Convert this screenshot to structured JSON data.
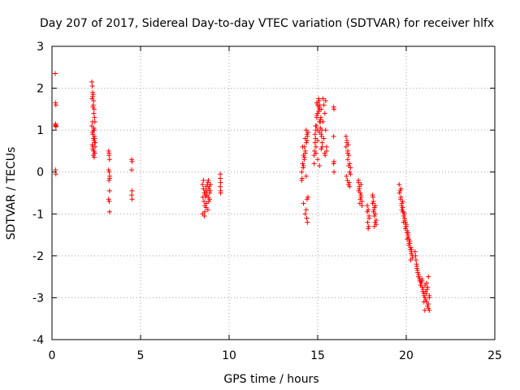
{
  "chart_data": {
    "type": "scatter",
    "title": "Day 207 of 2017, Sidereal Day-to-day VTEC variation (SDTVAR) for receiver hlfx",
    "xlabel": "GPS time / hours",
    "ylabel": "SDTVAR / TECUs",
    "xlim": [
      0,
      25
    ],
    "ylim": [
      -4,
      3
    ],
    "x_ticks": [
      0,
      5,
      10,
      15,
      20,
      25
    ],
    "y_ticks": [
      -4,
      -3,
      -2,
      -1,
      0,
      1,
      2,
      3
    ],
    "x_tick_labels": [
      "0",
      "5",
      "10",
      "15",
      "20",
      "25"
    ],
    "y_tick_labels": [
      "-4",
      "-3",
      "-2",
      "-1",
      "0",
      "1",
      "2",
      "3"
    ],
    "grid": true,
    "marker": "+",
    "color": "#ff0000",
    "series": [
      {
        "name": "SDTVAR",
        "x": [
          0.18,
          0.2,
          0.22,
          0.2,
          0.22,
          0.2,
          0.22,
          0.2,
          0.22,
          2.25,
          2.28,
          2.3,
          2.32,
          2.35,
          2.38,
          2.4,
          2.42,
          2.3,
          2.33,
          2.36,
          2.39,
          2.25,
          2.28,
          2.31,
          2.34,
          2.37,
          2.4,
          2.43,
          2.3,
          2.35,
          2.4,
          2.27,
          2.32,
          2.37,
          2.42,
          2.29,
          2.34,
          2.39,
          2.44,
          2.33,
          2.38,
          2.26,
          2.31,
          2.36,
          2.41,
          3.2,
          3.22,
          3.25,
          3.2,
          3.23,
          3.26,
          3.22,
          3.25,
          3.2,
          3.23,
          3.25,
          3.22,
          3.25,
          4.5,
          4.52,
          4.5,
          4.52,
          4.5,
          4.52,
          8.5,
          8.55,
          8.6,
          8.65,
          8.7,
          8.75,
          8.8,
          8.85,
          8.9,
          8.95,
          8.52,
          8.58,
          8.63,
          8.68,
          8.73,
          8.78,
          8.83,
          8.88,
          8.93,
          8.5,
          8.6,
          8.7,
          8.8,
          8.9,
          8.55,
          8.65,
          8.75,
          8.85,
          8.62,
          8.72,
          8.82,
          9.5,
          9.52,
          9.5,
          9.52,
          9.5,
          9.52,
          14.1,
          14.15,
          14.2,
          14.25,
          14.3,
          14.35,
          14.4,
          14.45,
          14.12,
          14.18,
          14.24,
          14.3,
          14.36,
          14.42,
          14.1,
          14.2,
          14.3,
          14.4,
          14.15,
          14.25,
          14.35,
          14.45,
          14.2,
          14.3,
          14.38,
          14.42,
          14.35,
          14.4,
          14.8,
          14.85,
          14.9,
          14.95,
          15.0,
          15.05,
          15.1,
          15.15,
          15.2,
          15.25,
          14.82,
          14.88,
          14.94,
          15.0,
          15.06,
          15.12,
          15.18,
          15.24,
          14.8,
          14.9,
          15.0,
          15.1,
          15.2,
          14.85,
          14.95,
          15.05,
          15.15,
          15.25,
          14.9,
          15.0,
          15.1,
          15.2,
          14.95,
          15.05,
          15.15,
          15.0,
          15.1,
          14.88,
          15.08,
          15.22,
          15.3,
          15.35,
          15.4,
          15.45,
          15.5,
          15.35,
          15.4,
          15.45,
          15.3,
          15.5,
          15.42,
          15.9,
          15.92,
          15.9,
          15.92,
          15.9,
          15.92,
          16.6,
          16.65,
          16.7,
          16.75,
          16.8,
          16.85,
          16.62,
          16.68,
          16.74,
          16.8,
          16.6,
          16.7,
          16.8,
          16.65,
          16.75,
          16.85,
          16.7,
          16.72,
          16.78,
          17.3,
          17.35,
          17.4,
          17.45,
          17.5,
          17.32,
          17.38,
          17.44,
          17.3,
          17.4,
          17.5,
          17.35,
          17.45,
          17.8,
          17.85,
          17.9,
          17.82,
          17.88,
          17.8,
          17.9,
          17.85,
          18.1,
          18.15,
          18.2,
          18.25,
          18.3,
          18.12,
          18.18,
          18.24,
          18.1,
          18.2,
          18.3,
          18.15,
          18.25,
          18.2,
          19.6,
          19.65,
          19.7,
          19.75,
          19.8,
          19.85,
          19.9,
          19.95,
          20.0,
          20.05,
          20.1,
          20.15,
          20.2,
          20.25,
          20.3,
          20.35,
          19.62,
          19.68,
          19.74,
          19.8,
          19.86,
          19.92,
          19.98,
          20.04,
          20.1,
          20.16,
          20.22,
          20.28,
          20.34,
          19.7,
          19.8,
          19.9,
          20.0,
          20.1,
          20.2,
          20.3,
          19.75,
          19.85,
          19.95,
          20.05,
          20.15,
          20.25,
          20.5,
          20.55,
          20.6,
          20.65,
          20.7,
          20.75,
          20.8,
          20.85,
          20.9,
          20.95,
          21.0,
          21.05,
          21.1,
          21.15,
          21.2,
          21.25,
          21.3,
          20.52,
          20.58,
          20.64,
          20.7,
          20.76,
          20.82,
          20.88,
          20.94,
          21.0,
          21.06,
          21.12,
          21.18,
          21.24,
          21.3,
          20.6,
          20.7,
          20.8,
          20.9,
          21.0,
          21.1,
          21.2,
          21.3,
          21.05,
          21.15,
          21.25
        ],
        "y": [
          2.35,
          1.65,
          1.6,
          1.15,
          1.1,
          1.12,
          1.08,
          0.05,
          -0.05,
          2.15,
          2.05,
          1.9,
          1.85,
          1.7,
          1.5,
          1.3,
          1.2,
          1.8,
          1.6,
          1.4,
          1.0,
          1.1,
          0.95,
          0.9,
          0.8,
          0.75,
          0.7,
          0.6,
          0.55,
          0.5,
          0.45,
          0.65,
          0.6,
          0.5,
          0.45,
          1.2,
          1.0,
          0.85,
          0.7,
          0.4,
          0.35,
          1.75,
          1.55,
          1.05,
          0.8,
          0.5,
          0.4,
          0.3,
          0.05,
          0.0,
          -0.1,
          -0.2,
          -0.45,
          -0.65,
          -0.7,
          -0.95,
          0.45,
          -0.15,
          0.3,
          0.25,
          0.05,
          -0.45,
          -0.55,
          -0.65,
          -0.3,
          -0.4,
          -0.5,
          -0.55,
          -0.35,
          -0.45,
          -0.25,
          -0.4,
          -0.5,
          -0.3,
          -0.6,
          -0.7,
          -0.8,
          -0.6,
          -0.5,
          -0.3,
          -0.2,
          -0.35,
          -0.45,
          -1.0,
          -1.05,
          -0.85,
          -0.9,
          -0.65,
          -0.2,
          -0.45,
          -0.55,
          -0.7,
          -0.95,
          -0.75,
          -0.6,
          -0.15,
          -0.25,
          -0.35,
          -0.45,
          -0.05,
          -0.5,
          0.0,
          0.2,
          0.4,
          0.6,
          0.8,
          1.0,
          0.9,
          0.95,
          -0.15,
          0.1,
          0.3,
          0.5,
          0.7,
          0.85,
          -0.2,
          0.15,
          0.45,
          0.75,
          0.6,
          0.35,
          -0.1,
          -0.6,
          -0.75,
          -1.0,
          -1.1,
          -1.2,
          -0.9,
          -0.65,
          0.4,
          0.7,
          1.0,
          1.3,
          1.6,
          1.75,
          1.5,
          1.2,
          0.9,
          0.6,
          0.5,
          0.8,
          1.1,
          1.4,
          1.7,
          1.6,
          1.3,
          1.0,
          0.2,
          0.6,
          1.0,
          1.2,
          1.5,
          0.9,
          1.35,
          1.55,
          1.25,
          0.7,
          0.45,
          0.75,
          0.95,
          0.55,
          1.65,
          1.45,
          1.05,
          0.3,
          0.15,
          1.1,
          1.7,
          0.85,
          1.75,
          1.6,
          1.4,
          1.0,
          0.5,
          0.8,
          0.45,
          1.7,
          1.2,
          0.6,
          0.4,
          1.55,
          1.5,
          0.85,
          0.25,
          0.2,
          0.0,
          0.85,
          0.7,
          0.5,
          0.4,
          0.2,
          0.1,
          -0.1,
          -0.2,
          -0.3,
          -0.35,
          0.6,
          0.3,
          0.0,
          0.75,
          0.15,
          -0.05,
          0.45,
          0.65,
          -0.25,
          -0.2,
          -0.35,
          -0.5,
          -0.6,
          -0.7,
          -0.45,
          -0.75,
          -0.55,
          -0.25,
          -0.65,
          -0.8,
          -0.4,
          -0.3,
          -0.8,
          -0.9,
          -1.05,
          -1.2,
          -1.3,
          -0.95,
          -1.1,
          -1.35,
          -0.55,
          -0.7,
          -0.85,
          -1.0,
          -1.15,
          -0.6,
          -0.9,
          -1.2,
          -0.75,
          -1.05,
          -1.25,
          -0.95,
          -0.8,
          -1.3,
          -0.3,
          -0.45,
          -0.6,
          -0.75,
          -0.85,
          -0.95,
          -1.1,
          -1.2,
          -1.3,
          -1.4,
          -1.5,
          -1.6,
          -1.7,
          -1.8,
          -1.9,
          -2.0,
          -0.5,
          -0.65,
          -0.8,
          -0.95,
          -1.05,
          -1.15,
          -1.3,
          -1.45,
          -1.55,
          -1.7,
          -1.85,
          -1.95,
          -2.05,
          -0.4,
          -0.7,
          -1.0,
          -1.25,
          -1.45,
          -1.65,
          -1.85,
          -0.9,
          -1.2,
          -1.35,
          -1.6,
          -1.75,
          -2.1,
          -1.9,
          -2.1,
          -2.3,
          -2.4,
          -2.5,
          -2.55,
          -2.6,
          -2.65,
          -2.75,
          -2.8,
          -2.9,
          -3.0,
          -3.05,
          -3.1,
          -3.2,
          -3.25,
          -3.3,
          -2.0,
          -2.2,
          -2.35,
          -2.45,
          -2.6,
          -2.7,
          -2.55,
          -2.85,
          -2.95,
          -2.7,
          -2.9,
          -2.8,
          -3.15,
          -3.0,
          -2.25,
          -2.5,
          -2.7,
          -2.6,
          -3.1,
          -2.85,
          -2.75,
          -2.95,
          -3.3,
          -2.65,
          -2.5
        ]
      }
    ]
  }
}
